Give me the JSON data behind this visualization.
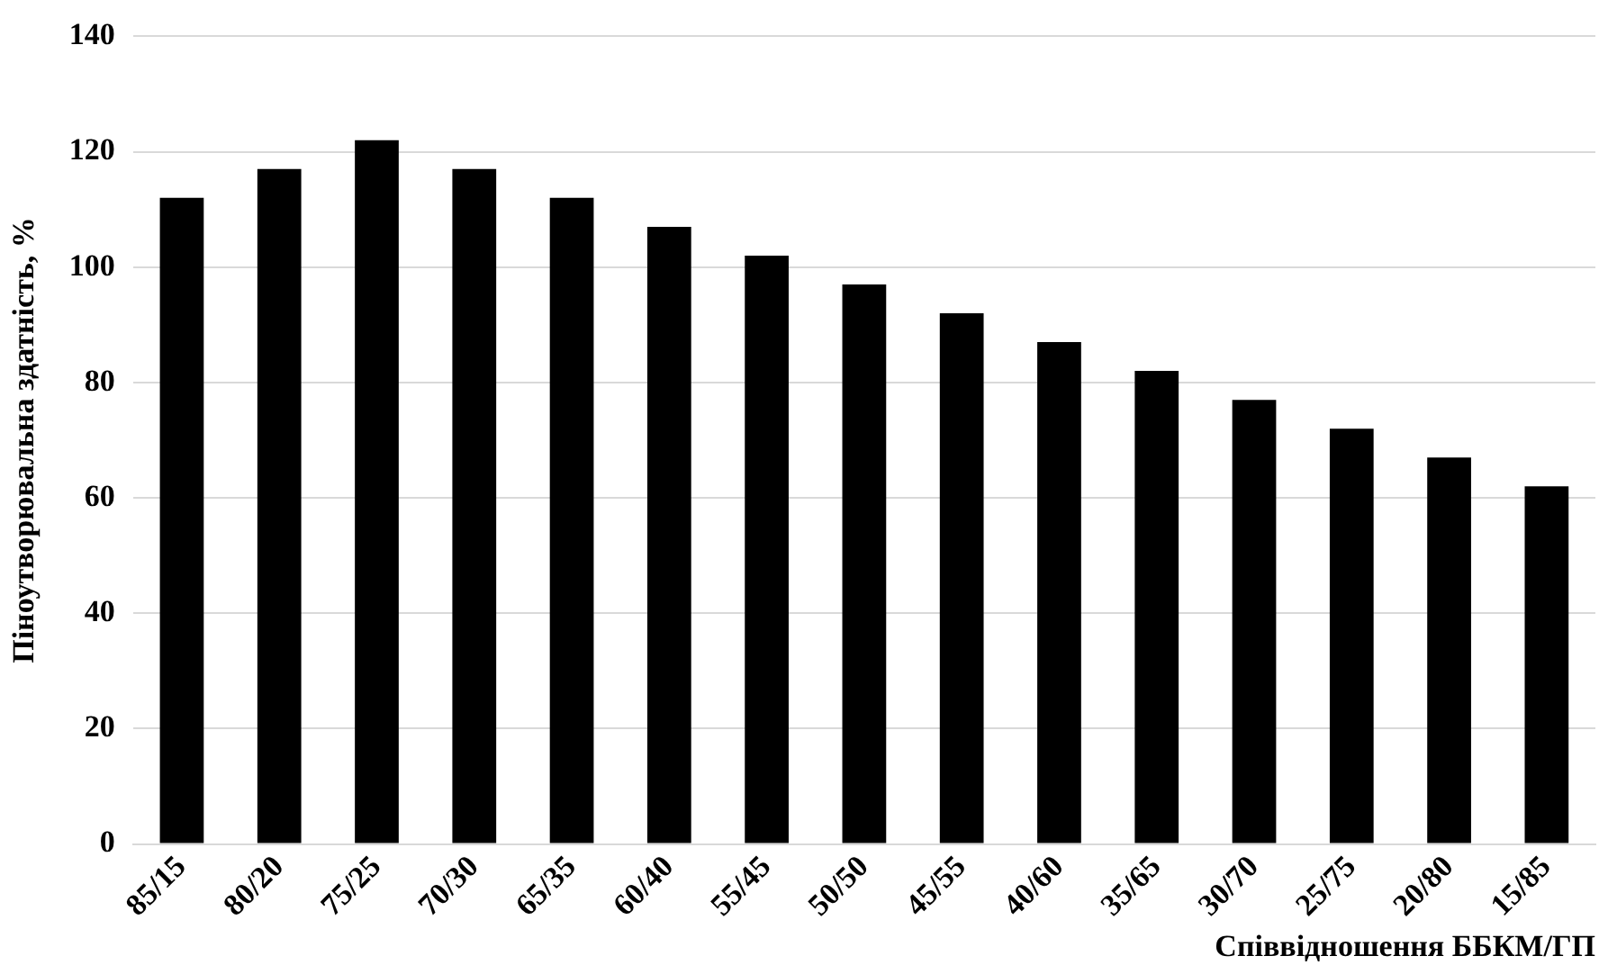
{
  "chart_data": {
    "type": "bar",
    "xlabel": "Співвідношення ББКМ/ГП",
    "ylabel": "Піноутворювальна здатність, %",
    "categories": [
      "85/15",
      "80/20",
      "75/25",
      "70/30",
      "65/35",
      "60/40",
      "55/45",
      "50/50",
      "45/55",
      "40/60",
      "35/65",
      "30/70",
      "25/75",
      "20/80",
      "15/85"
    ],
    "values": [
      112,
      117,
      122,
      117,
      112,
      107,
      102,
      97,
      92,
      87,
      82,
      77,
      72,
      67,
      62
    ],
    "color": "#000000",
    "ylim": [
      0,
      140
    ],
    "yticks": [
      0,
      20,
      40,
      60,
      80,
      100,
      120,
      140
    ],
    "grid": "y",
    "legend": false
  }
}
